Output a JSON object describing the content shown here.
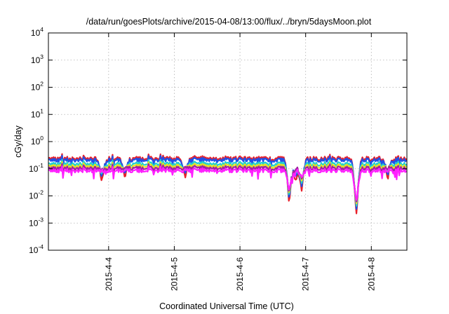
{
  "chart_data": {
    "type": "line",
    "title": "/data/run/goesPlots/archive/2015-04-08/13:00/flux/../bryn/5daysMoon.plot",
    "xlabel": "Coordinated Universal Time (UTC)",
    "ylabel": "cGy/day",
    "yscale": "log",
    "ylim": [
      0.0001,
      10000
    ],
    "xlim": [
      "2015-04-03 02:00",
      "2015-04-08 13:00"
    ],
    "grid": true,
    "legend": "none",
    "x_ticks": [
      "2015-4-4",
      "2015-4-5",
      "2015-4-6",
      "2015-4-7",
      "2015-4-8"
    ],
    "y_ticks": [
      {
        "base": "10",
        "exp": "-4"
      },
      {
        "base": "10",
        "exp": "-3"
      },
      {
        "base": "10",
        "exp": "-2"
      },
      {
        "base": "10",
        "exp": "-1"
      },
      {
        "base": "10",
        "exp": "0"
      },
      {
        "base": "10",
        "exp": "1"
      },
      {
        "base": "10",
        "exp": "2"
      },
      {
        "base": "10",
        "exp": "3"
      },
      {
        "base": "10",
        "exp": "4"
      }
    ],
    "series": [
      {
        "color": "#e8202a",
        "baseline": 0.24
      },
      {
        "color": "#2050e8",
        "baseline": 0.21
      },
      {
        "color": "#20d0d0",
        "baseline": 0.15
      },
      {
        "color": "#e8e020",
        "baseline": 0.125
      },
      {
        "color": "#a020a0",
        "baseline": 0.105
      },
      {
        "color": "#ff20ff",
        "baseline": 0.085
      }
    ],
    "dips": [
      {
        "time": "2015-04-03 21:30",
        "min": 0.03
      },
      {
        "time": "2015-04-04 06:00",
        "min": 0.04
      },
      {
        "time": "2015-04-05 04:00",
        "min": 0.04
      },
      {
        "time": "2015-04-06 18:00",
        "min": 0.0045
      },
      {
        "time": "2015-04-06 20:30",
        "min": 0.035
      },
      {
        "time": "2015-04-06 22:30",
        "min": 0.015
      },
      {
        "time": "2015-04-07 18:30",
        "min": 0.0017
      },
      {
        "time": "2015-04-08 06:00",
        "min": 0.04
      }
    ]
  }
}
